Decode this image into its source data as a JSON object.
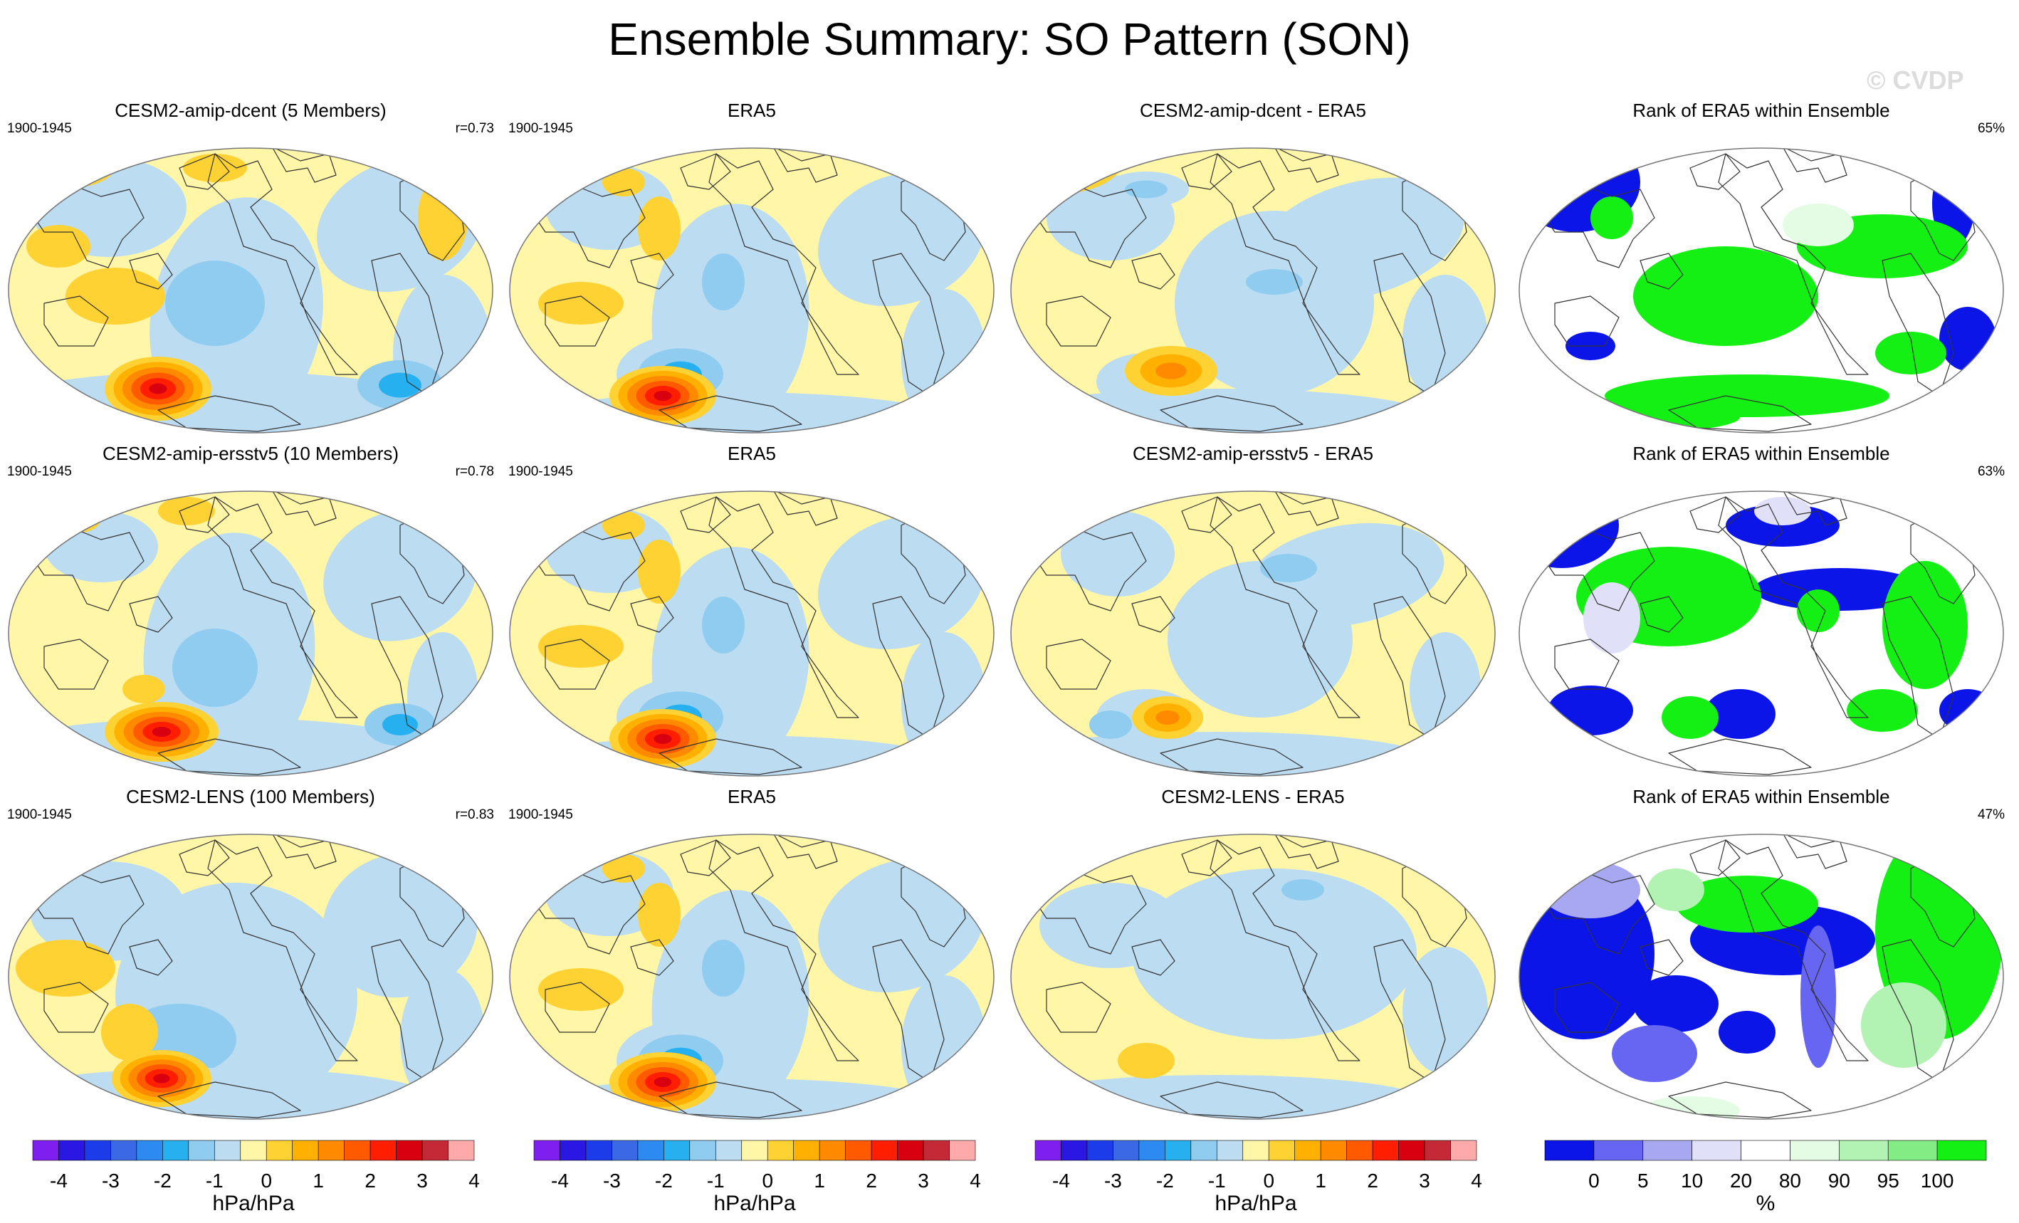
{
  "title": "Ensemble Summary: SO Pattern (SON)",
  "watermark": "© CVDP",
  "colors": {
    "anomaly_scale": [
      "#7f1fef",
      "#2b17e3",
      "#1c3cea",
      "#3b69e6",
      "#2c8af0",
      "#27b0ef",
      "#8fccf0",
      "#bcdcf2",
      "#fff6a8",
      "#ffd233",
      "#ffb000",
      "#ff8a00",
      "#ff5a00",
      "#ff1e00",
      "#d80010",
      "#c42a35",
      "#ffaaaa"
    ],
    "rank_scale": [
      "#0b15e8",
      "#6666f2",
      "#a7a7f2",
      "#e0e0f9",
      "#ffffff",
      "#e4fbe4",
      "#b2f2b2",
      "#84ec84",
      "#14f014"
    ],
    "coast": "#333333",
    "frame": "#777777"
  },
  "rows": [
    {
      "model": {
        "title": "CESM2-amip-dcent (5 Members)",
        "period": "1900-1945",
        "corr": "r=0.73"
      },
      "obs": {
        "title": "ERA5",
        "period": "1900-1945"
      },
      "diff": {
        "title": "CESM2-amip-dcent - ERA5"
      },
      "rank": {
        "title": "Rank of ERA5 within Ensemble",
        "pct": "65%"
      }
    },
    {
      "model": {
        "title": "CESM2-amip-ersstv5 (10 Members)",
        "period": "1900-1945",
        "corr": "r=0.78"
      },
      "obs": {
        "title": "ERA5",
        "period": "1900-1945"
      },
      "diff": {
        "title": "CESM2-amip-ersstv5 - ERA5"
      },
      "rank": {
        "title": "Rank of ERA5 within Ensemble",
        "pct": "63%"
      }
    },
    {
      "model": {
        "title": "CESM2-LENS (100 Members)",
        "period": "1900-1945",
        "corr": "r=0.83"
      },
      "obs": {
        "title": "ERA5",
        "period": "1900-1945"
      },
      "diff": {
        "title": "CESM2-LENS - ERA5"
      },
      "rank": {
        "title": "Rank of ERA5 within Ensemble",
        "pct": "47%"
      }
    }
  ],
  "colorbars": {
    "anomaly": {
      "ticks": [
        "-4",
        "-3",
        "-2",
        "-1",
        "0",
        "1",
        "2",
        "3",
        "4"
      ],
      "label": "hPa/hPa"
    },
    "rank": {
      "ticks": [
        "0",
        "5",
        "10",
        "20",
        "80",
        "90",
        "95",
        "100"
      ],
      "label": "%"
    }
  }
}
